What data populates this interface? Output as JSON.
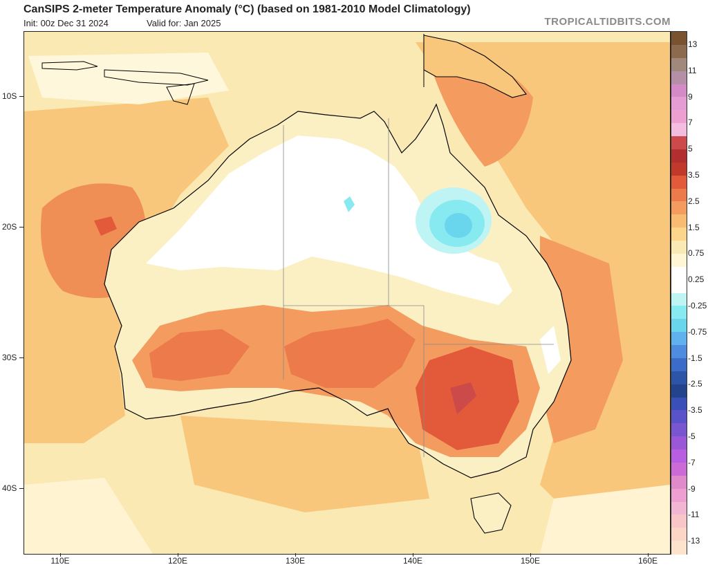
{
  "header": {
    "title": "CanSIPS 2-meter Temperature Anomaly (°C) (based on 1981-2010 Model Climatology)",
    "init": "Init: 00z Dec 31 2024",
    "valid": "Valid for: Jan 2025",
    "brand": "TROPICALTIDBITS.COM"
  },
  "map": {
    "lat_labels": [
      "10S",
      "20S",
      "30S",
      "40S"
    ],
    "lon_labels": [
      "110E",
      "120E",
      "130E",
      "140E",
      "150E",
      "160E"
    ],
    "land_color": "#fbf0c4",
    "ocean_base_color": "#fbe9b4"
  },
  "legend": {
    "labels": [
      "13",
      "11",
      "9",
      "7",
      "5",
      "3.5",
      "2.5",
      "1.5",
      "0.75",
      "0.25",
      "-0.25",
      "-0.75",
      "-1.5",
      "-2.5",
      "-3.5",
      "-5",
      "-7",
      "-9",
      "-11",
      "-13"
    ],
    "colors": [
      "#7a5230",
      "#8c6a4d",
      "#a0887a",
      "#b58ea8",
      "#d58ac8",
      "#e59bd4",
      "#ed9fd2",
      "#f4bde0",
      "#cc4a4a",
      "#b22f2f",
      "#c0392b",
      "#e25a3a",
      "#ec7a4a",
      "#f49c5f",
      "#f8bb72",
      "#fbd58a",
      "#fbe9b4",
      "#fff6d6",
      "#ffffff",
      "#ffffff",
      "#bff4f4",
      "#86eaf0",
      "#6ad6ee",
      "#5fb2ee",
      "#4e8ce0",
      "#3a6cc8",
      "#2c55a8",
      "#23438c",
      "#3a4fb8",
      "#5a52c8",
      "#7a55d0",
      "#9a58d8",
      "#b85ee0",
      "#cc6ad8",
      "#e08acc",
      "#ec9fd0",
      "#f3b6d2",
      "#f8c6c6",
      "#fbd6c6",
      "#fde2cc"
    ]
  }
}
